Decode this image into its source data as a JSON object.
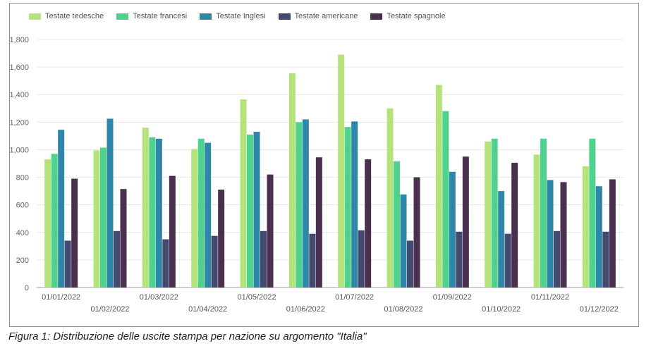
{
  "chart_data": {
    "type": "bar",
    "categories": [
      "01/01/2022",
      "01/02/2022",
      "01/03/2022",
      "01/04/2022",
      "01/05/2022",
      "01/06/2022",
      "01/07/2022",
      "01/08/2022",
      "01/09/2022",
      "01/10/2022",
      "01/11/2022",
      "01/12/2022"
    ],
    "series": [
      {
        "name": "Testate tedesche",
        "color": "#b5e37b",
        "values": [
          930,
          995,
          1160,
          1005,
          1365,
          1555,
          1690,
          1300,
          1470,
          1060,
          965,
          880
        ]
      },
      {
        "name": "Testate francesi",
        "color": "#4fd28e",
        "values": [
          970,
          1015,
          1090,
          1080,
          1110,
          1200,
          1165,
          915,
          1280,
          1080,
          1080,
          1080
        ]
      },
      {
        "name": "Testate Inglesi",
        "color": "#2e86a8",
        "values": [
          1145,
          1225,
          1080,
          1050,
          1130,
          1220,
          1205,
          675,
          840,
          700,
          780,
          735
        ]
      },
      {
        "name": "Testate americane",
        "color": "#434a6e",
        "values": [
          340,
          410,
          350,
          375,
          410,
          390,
          415,
          340,
          405,
          390,
          410,
          405
        ]
      },
      {
        "name": "Testate spagnole",
        "color": "#4b2f4f",
        "values": [
          790,
          715,
          810,
          710,
          820,
          945,
          930,
          800,
          950,
          905,
          765,
          785
        ]
      }
    ],
    "ylim": [
      0,
      1800
    ],
    "yticks": [
      "0",
      "200",
      "400",
      "600",
      "800",
      "1,000",
      "1,200",
      "1,400",
      "1,600",
      "1,800"
    ],
    "grid": true,
    "legend_position": "top-left"
  },
  "caption": "Figura 1: Distribuzione delle uscite stampa per nazione su argomento \"Italia\""
}
